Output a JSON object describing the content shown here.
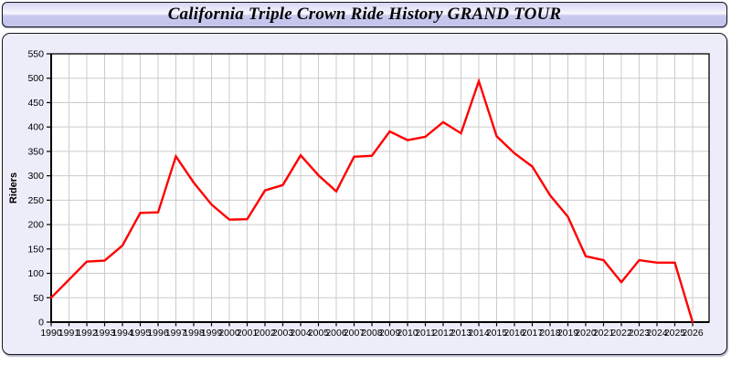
{
  "window": {
    "title": "California Triple Crown Ride History GRAND TOUR"
  },
  "colors": {
    "line": "#ff0000",
    "panel_background": "#ededfa",
    "plot_background": "#ffffff",
    "gridline": "#cccccc",
    "axis": "#000000",
    "titlebar_tint": "#c9c9ee"
  },
  "chart_data": {
    "type": "line",
    "title": "California Triple Crown Ride History GRAND TOUR",
    "xlabel": "",
    "ylabel": "Riders",
    "ylim": [
      0,
      550
    ],
    "ytick_step": 50,
    "grid": true,
    "legend": "none",
    "x": [
      1990,
      1991,
      1992,
      1993,
      1994,
      1995,
      1996,
      1997,
      1998,
      1999,
      2000,
      2001,
      2002,
      2003,
      2004,
      2005,
      2006,
      2007,
      2008,
      2009,
      2010,
      2011,
      2012,
      2013,
      2014,
      2015,
      2016,
      2017,
      2018,
      2019,
      2020,
      2021,
      2022,
      2023,
      2024,
      2025,
      2026
    ],
    "series": [
      {
        "name": "Riders",
        "color": "#ff0000",
        "values": [
          50,
          87,
          124,
          126,
          157,
          224,
          225,
          340,
          286,
          241,
          210,
          211,
          270,
          281,
          342,
          301,
          268,
          339,
          341,
          391,
          373,
          380,
          410,
          387,
          494,
          381,
          346,
          319,
          260,
          216,
          135,
          127,
          82,
          127,
          122,
          122,
          0
        ]
      }
    ]
  }
}
